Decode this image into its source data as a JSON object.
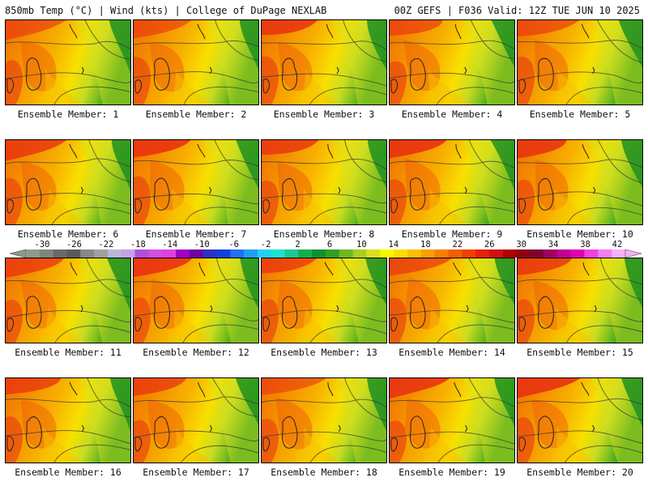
{
  "header": {
    "left": "850mb Temp (°C) | Wind (kts) | College of DuPage NEXLAB",
    "right": "00Z GEFS | F036 Valid: 12Z TUE JUN 10 2025"
  },
  "members": [
    "Ensemble Member: 1",
    "Ensemble Member: 2",
    "Ensemble Member: 3",
    "Ensemble Member: 4",
    "Ensemble Member: 5",
    "Ensemble Member: 6",
    "Ensemble Member: 7",
    "Ensemble Member: 8",
    "Ensemble Member: 9",
    "Ensemble Member: 10",
    "Ensemble Member: 11",
    "Ensemble Member: 12",
    "Ensemble Member: 13",
    "Ensemble Member: 14",
    "Ensemble Member: 15",
    "Ensemble Member: 16",
    "Ensemble Member: 17",
    "Ensemble Member: 18",
    "Ensemble Member: 19",
    "Ensemble Member: 20"
  ],
  "colorbar": {
    "ticks": [
      "-30",
      "-26",
      "-22",
      "-18",
      "-14",
      "-10",
      "-6",
      "-2",
      "2",
      "6",
      "10",
      "14",
      "18",
      "22",
      "26",
      "30",
      "34",
      "38",
      "42"
    ],
    "colors": [
      "#8c9c8c",
      "#7a8a7a",
      "#6a6a6a",
      "#5a5a5a",
      "#888888",
      "#a0a0a0",
      "#b8b8d8",
      "#c8a0e8",
      "#b050e0",
      "#d050e0",
      "#e040e0",
      "#a000c0",
      "#7000a0",
      "#3030c0",
      "#1040e0",
      "#2070f0",
      "#20a0f0",
      "#20d0f0",
      "#20e0d0",
      "#20c890",
      "#10b050",
      "#109030",
      "#30a020",
      "#70b820",
      "#a8d020",
      "#d8e020",
      "#f8f800",
      "#f8e000",
      "#f8c000",
      "#f8a000",
      "#f88000",
      "#f06000",
      "#f04000",
      "#e82010",
      "#d01010",
      "#b00000",
      "#900010",
      "#800030",
      "#a00060",
      "#c00090",
      "#e000b0",
      "#f040e0",
      "#f080f0",
      "#f8b0f8"
    ]
  }
}
